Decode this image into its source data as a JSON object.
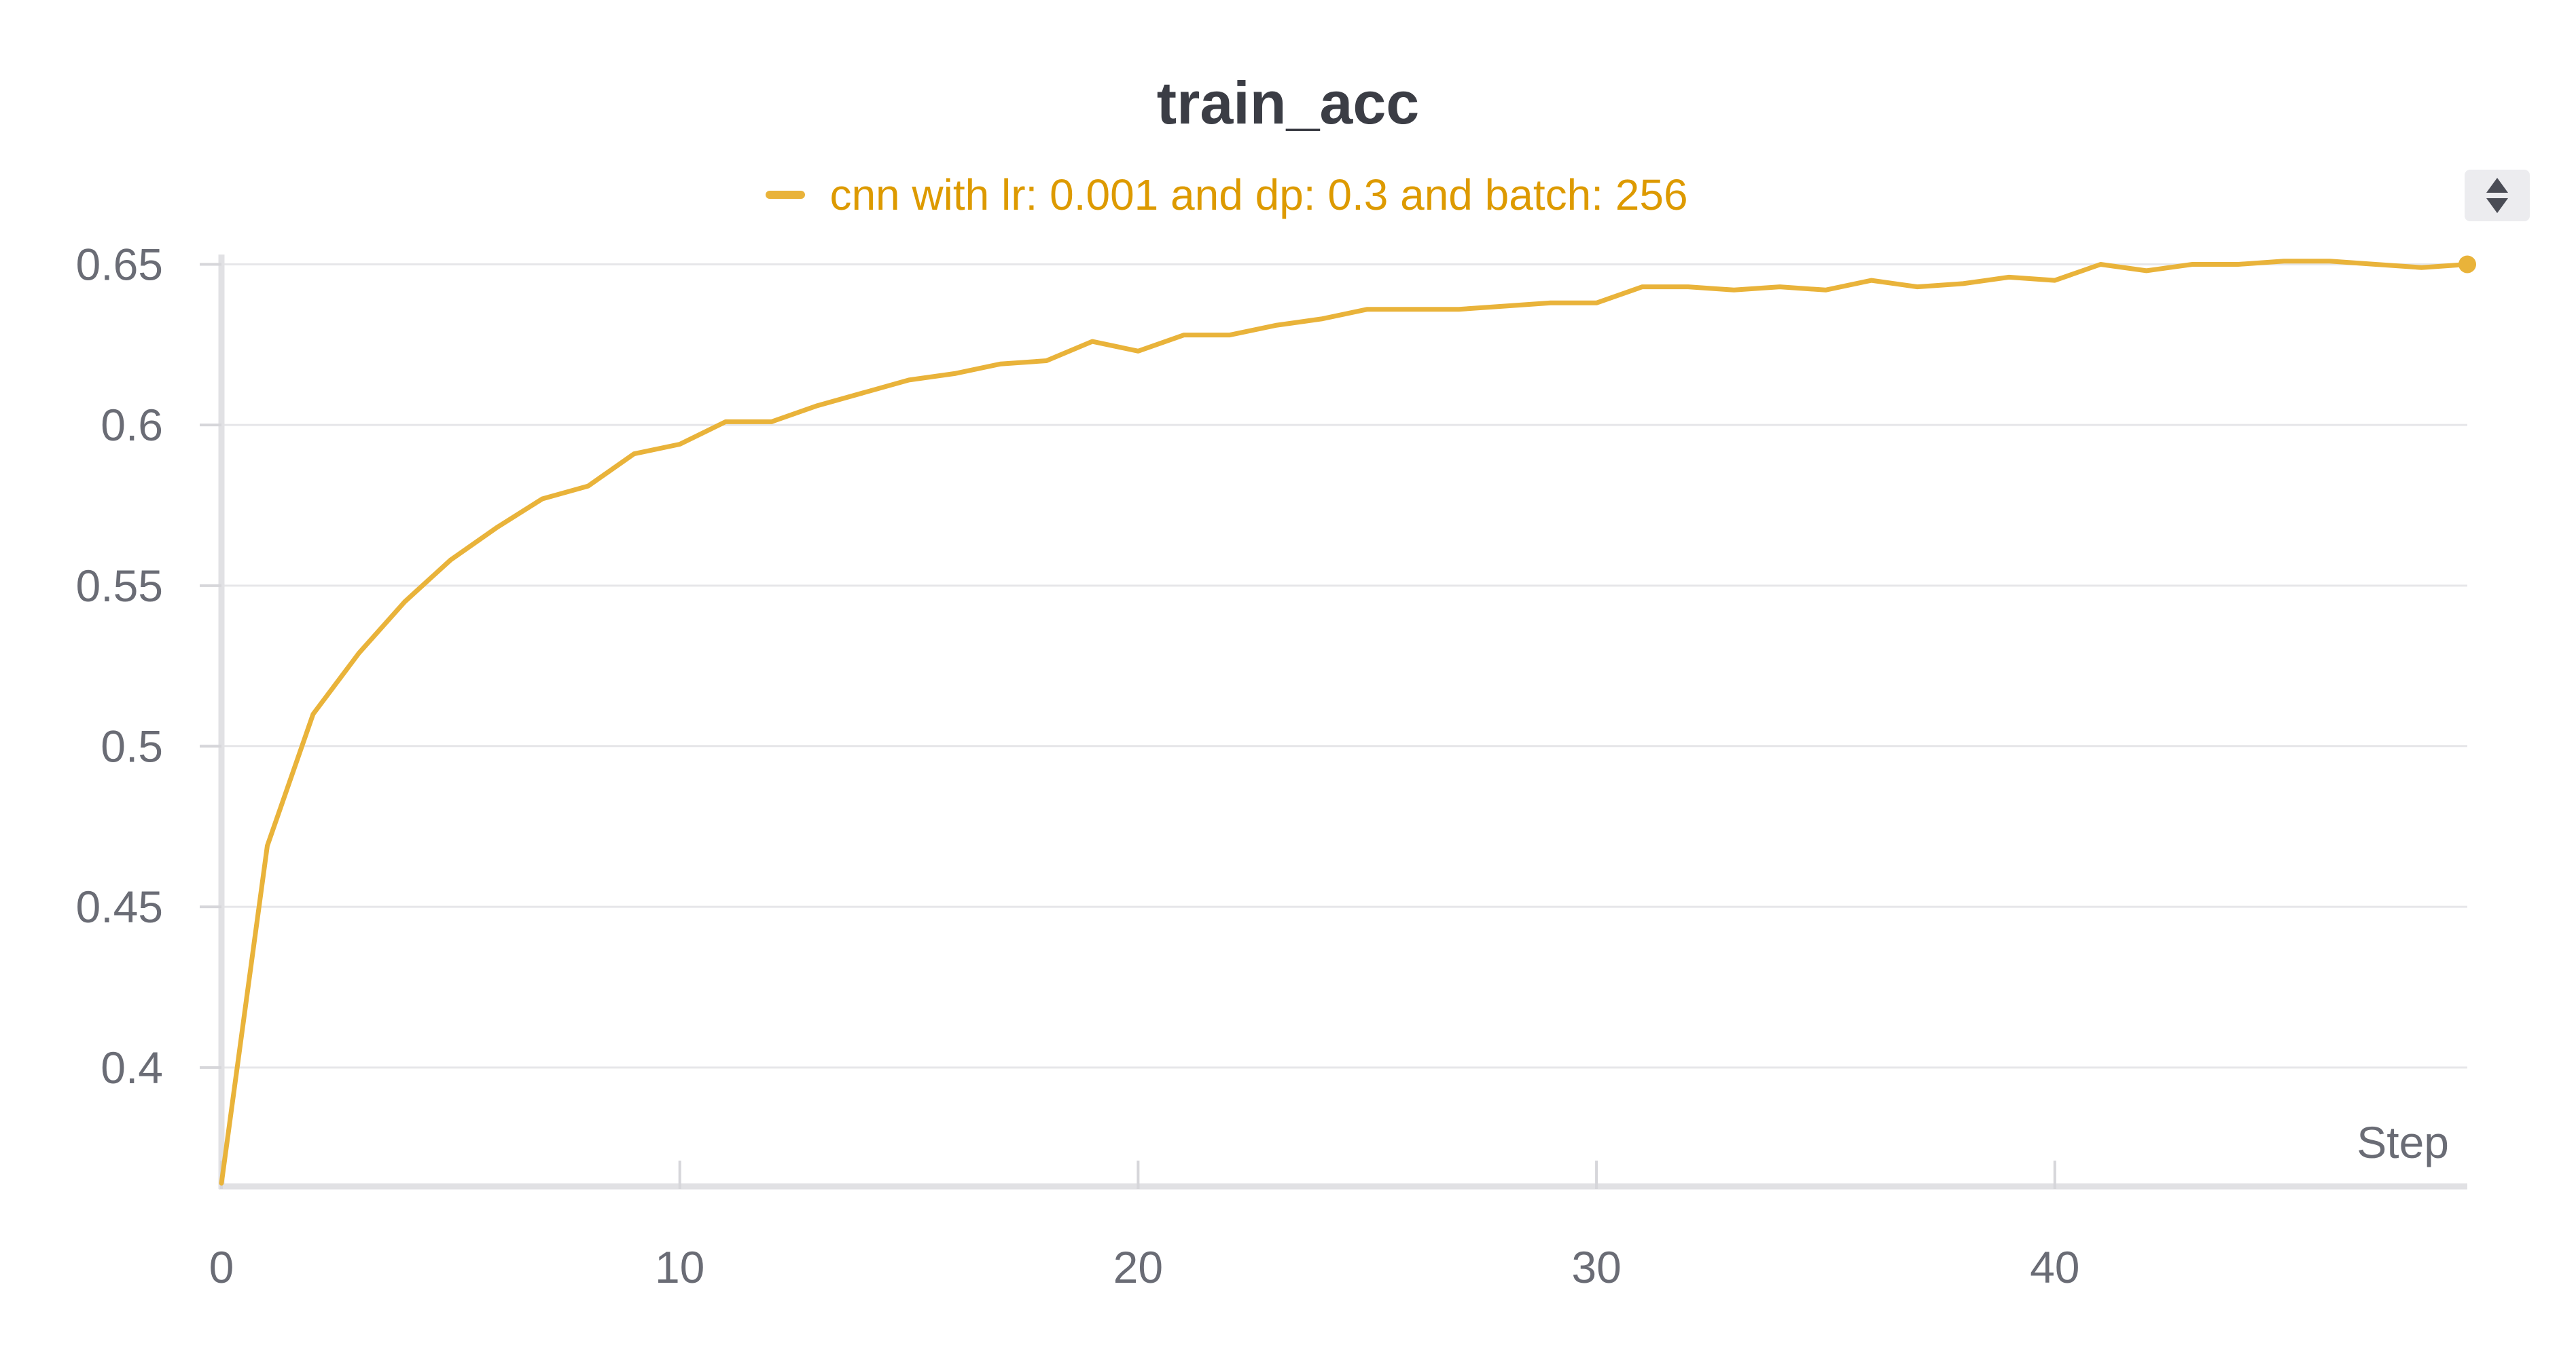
{
  "chart_data": {
    "type": "line",
    "title": "train_acc",
    "xlabel": "Step",
    "ylabel": "",
    "xlim": [
      0,
      49
    ],
    "ylim": [
      0.363,
      0.652
    ],
    "x_ticks": [
      0,
      10,
      20,
      30,
      40
    ],
    "y_ticks": [
      0.4,
      0.45,
      0.5,
      0.55,
      0.6,
      0.65
    ],
    "grid": true,
    "legend_position": "top-center",
    "series": [
      {
        "name": "cnn with lr: 0.001 and dp: 0.3 and batch: 256",
        "color": "#e9b33a",
        "x": [
          0,
          1,
          2,
          3,
          4,
          5,
          6,
          7,
          8,
          9,
          10,
          11,
          12,
          13,
          14,
          15,
          16,
          17,
          18,
          19,
          20,
          21,
          22,
          23,
          24,
          25,
          26,
          27,
          28,
          29,
          30,
          31,
          32,
          33,
          34,
          35,
          36,
          37,
          38,
          39,
          40,
          41,
          42,
          43,
          44,
          45,
          46,
          47,
          48,
          49
        ],
        "values": [
          0.364,
          0.469,
          0.51,
          0.529,
          0.545,
          0.558,
          0.568,
          0.577,
          0.581,
          0.591,
          0.594,
          0.601,
          0.601,
          0.606,
          0.61,
          0.614,
          0.616,
          0.619,
          0.62,
          0.626,
          0.623,
          0.628,
          0.628,
          0.631,
          0.633,
          0.636,
          0.636,
          0.636,
          0.637,
          0.638,
          0.638,
          0.643,
          0.643,
          0.642,
          0.643,
          0.642,
          0.645,
          0.643,
          0.644,
          0.646,
          0.645,
          0.65,
          0.648,
          0.65,
          0.65,
          0.651,
          0.651,
          0.65,
          0.649,
          0.65
        ]
      }
    ]
  },
  "icons": {
    "scroll": "up-down-caret-icon"
  }
}
